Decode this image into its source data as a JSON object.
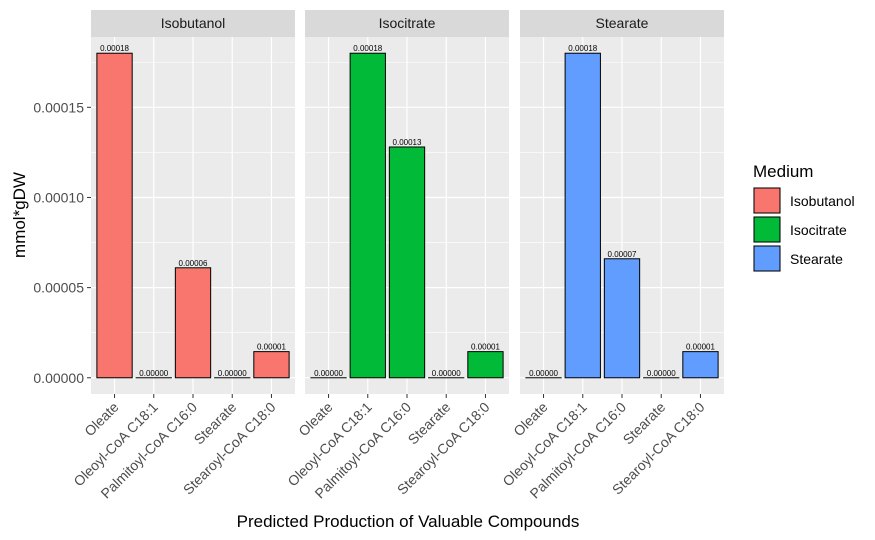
{
  "chart_data": {
    "type": "bar",
    "facets": [
      "Isobutanol",
      "Isocitrate",
      "Stearate"
    ],
    "categories": [
      "Oleate",
      "Oleoyl-CoA C18:1",
      "Palmitoyl-CoA C16:0",
      "Stearate",
      "Stearoyl-CoA C18:0"
    ],
    "series": [
      {
        "name": "Isobutanol",
        "color": "#F8766D",
        "values": [
          0.00018,
          0.0,
          6.1e-05,
          0.0,
          1.45e-05
        ],
        "labels": [
          "0.00018",
          "0.00000",
          "0.00006",
          "0.00000",
          "0.00001"
        ]
      },
      {
        "name": "Isocitrate",
        "color": "#00BA38",
        "values": [
          0.0,
          0.00018,
          0.000128,
          0.0,
          1.45e-05
        ],
        "labels": [
          "0.00000",
          "0.00018",
          "0.00013",
          "0.00000",
          "0.00001"
        ]
      },
      {
        "name": "Stearate",
        "color": "#619CFF",
        "values": [
          0.0,
          0.00018,
          6.6e-05,
          0.0,
          1.45e-05
        ],
        "labels": [
          "0.00000",
          "0.00018",
          "0.00007",
          "0.00000",
          "0.00001"
        ]
      }
    ],
    "y_ticks": [
      0,
      5e-05,
      0.0001,
      0.00015
    ],
    "y_tick_labels": [
      "0.00000",
      "0.00005",
      "0.00010",
      "0.00015"
    ],
    "ylim": [
      -9e-06,
      0.000189
    ],
    "xlabel": "Predicted Production of Valuable Compounds",
    "ylabel": "mmol*gDW",
    "legend": {
      "title": "Medium",
      "position": "right",
      "items": [
        "Isobutanol",
        "Isocitrate",
        "Stearate"
      ]
    },
    "grid": true,
    "panel_background": "#EBEBEB",
    "strip_background": "#D9D9D9"
  }
}
